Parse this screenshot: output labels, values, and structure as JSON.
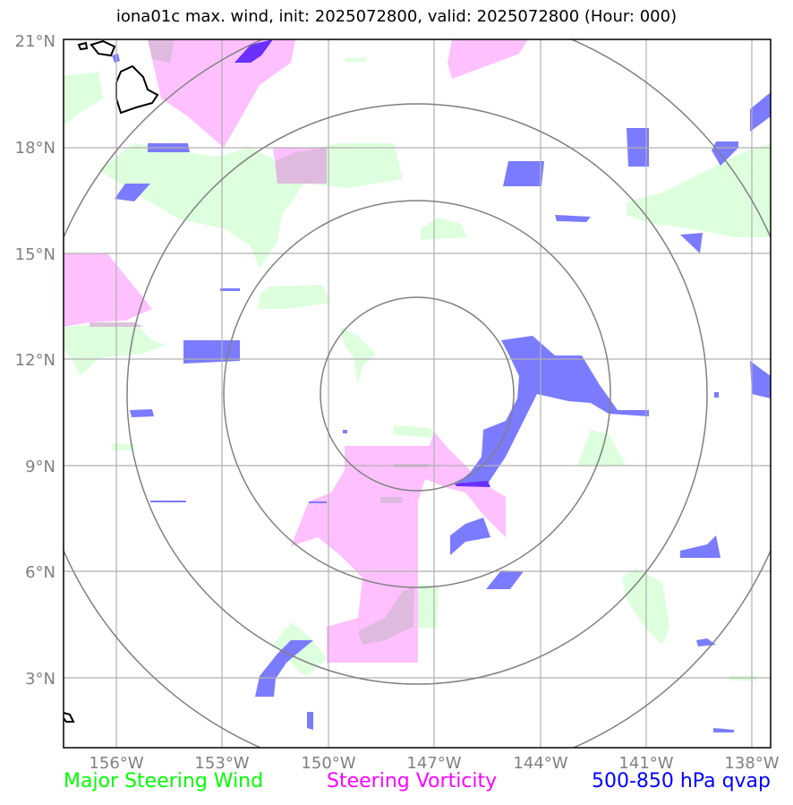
{
  "title": "iona01c max. wind, init: 2025072800, valid: 2025072800 (Hour: 000)",
  "axes": {
    "lat_labels": [
      "21°N",
      "18°N",
      "15°N",
      "12°N",
      "9°N",
      "6°N",
      "3°N"
    ],
    "lon_labels": [
      "156°W",
      "153°W",
      "150°W",
      "147°W",
      "144°W",
      "141°W",
      "138°W"
    ]
  },
  "legend": {
    "wind": {
      "label": "Major Steering Wind",
      "color": "#00ff00"
    },
    "vorticity": {
      "label": "Steering Vorticity",
      "color": "#ff00ff"
    },
    "qvap": {
      "label": "500-850 hPa qvap",
      "color": "#0000ff"
    }
  },
  "colors": {
    "wind_fill": "#ddffdd",
    "vorticity_fill": "#ffc0ff",
    "qvap_fill": "#7b7bff",
    "grid": "#b0b0b0",
    "rings": "#808080",
    "coast": "#000000"
  },
  "map": {
    "lat_range": [
      1,
      21
    ],
    "lon_range": [
      -157.5,
      -137.5
    ],
    "grid": true,
    "range_rings": 4
  }
}
